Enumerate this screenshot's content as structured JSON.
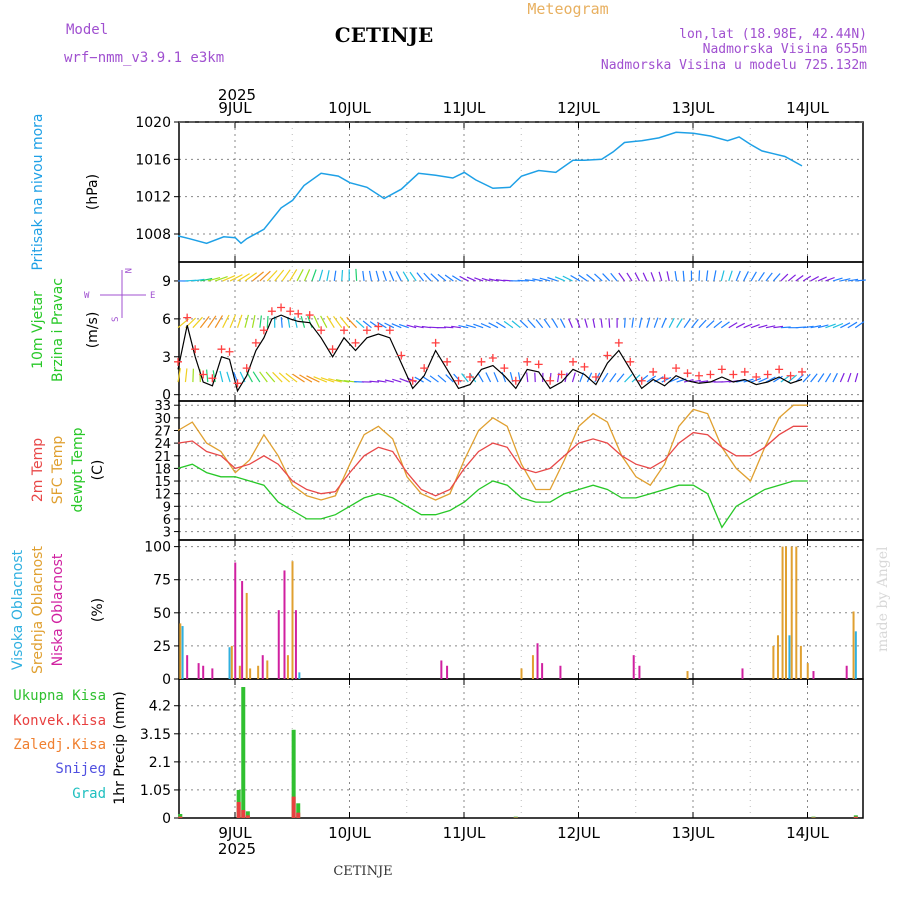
{
  "header": {
    "model_label": "Model",
    "model_name": "wrf−nmm_v3.9.1 e3km",
    "station": "CETINJE",
    "product": "Meteogram",
    "coords": "lon,lat (18.98E, 42.44N)",
    "altitude": "Nadmorska Visina 655m",
    "model_altitude": "Nadmorska Visina u modelu 725.132m"
  },
  "footer": {
    "station": "CETINJE",
    "credit": "made by Angel"
  },
  "axis": {
    "year": "2025",
    "days": [
      "9JUL",
      "10JUL",
      "11JUL",
      "12JUL",
      "13JUL",
      "14JUL"
    ]
  },
  "colors": {
    "pressure": "#1ea0e6",
    "wind": "#000000",
    "wind_markers": "#ff4040",
    "t2m": "#e84848",
    "sfc": "#e0a030",
    "dew": "#28c828",
    "high_cloud": "#30b0e0",
    "mid_cloud": "#e0a030",
    "low_cloud": "#d020a0",
    "rain_total": "#30c030",
    "rain_conv": "#e84040",
    "freezing": "#f08030",
    "snow": "#5050e0",
    "hail": "#20c0c0",
    "purple": "#a050d0",
    "product": "#e8b060"
  },
  "chart_data": [
    {
      "type": "line",
      "title": "Pritisak na nivou mora",
      "ylabel": "(hPa)",
      "ylim": [
        1005,
        1020
      ],
      "yticks": [
        1008,
        1012,
        1016,
        1020
      ],
      "x_days": [
        0,
        0.1,
        0.25,
        0.4,
        0.5,
        0.55,
        0.6,
        0.75,
        0.9,
        1.0,
        1.1,
        1.25,
        1.4,
        1.5,
        1.65,
        1.8,
        1.95,
        2.1,
        2.25,
        2.4,
        2.5,
        2.6,
        2.75,
        2.9,
        3.0,
        3.15,
        3.3,
        3.45,
        3.55,
        3.7,
        3.8,
        3.9,
        4.05,
        4.2,
        4.35,
        4.5,
        4.65,
        4.8,
        4.9,
        5.0,
        5.1,
        5.2,
        5.3,
        5.45
      ],
      "values": [
        1007.8,
        1007.5,
        1007.0,
        1007.7,
        1007.6,
        1007.0,
        1007.5,
        1008.5,
        1010.8,
        1011.6,
        1013.2,
        1014.5,
        1014.2,
        1013.5,
        1013.0,
        1011.8,
        1012.8,
        1014.5,
        1014.3,
        1014.0,
        1014.6,
        1013.8,
        1012.9,
        1013.0,
        1014.2,
        1014.8,
        1014.6,
        1015.9,
        1015.9,
        1016.0,
        1016.8,
        1017.8,
        1018.0,
        1018.3,
        1018.9,
        1018.8,
        1018.5,
        1018.0,
        1018.4,
        1017.6,
        1016.9,
        1016.6,
        1016.3,
        1015.3
      ]
    },
    {
      "type": "line",
      "title": "10m Vjetar Brzina i Pravac",
      "ylabel": "(m/s)",
      "compass": [
        "N",
        "S",
        "W",
        "E"
      ],
      "ylim": [
        -0.5,
        10.5
      ],
      "yticks": [
        0,
        3,
        6,
        9
      ],
      "x_days": [
        0,
        0.08,
        0.15,
        0.22,
        0.3,
        0.38,
        0.45,
        0.52,
        0.6,
        0.68,
        0.75,
        0.82,
        0.9,
        0.98,
        1.05,
        1.15,
        1.25,
        1.35,
        1.45,
        1.55,
        1.65,
        1.75,
        1.85,
        1.95,
        2.05,
        2.15,
        2.25,
        2.35,
        2.45,
        2.55,
        2.65,
        2.75,
        2.85,
        2.95,
        3.05,
        3.15,
        3.25,
        3.35,
        3.45,
        3.55,
        3.65,
        3.75,
        3.85,
        3.95,
        4.05,
        4.15,
        4.25,
        4.35,
        4.45,
        4.55,
        4.65,
        4.75,
        4.85,
        4.95,
        5.05,
        5.15,
        5.25,
        5.35,
        5.45
      ],
      "values": [
        2.0,
        5.5,
        3.0,
        1.0,
        0.7,
        3.0,
        2.8,
        0.3,
        1.5,
        3.5,
        4.5,
        6.0,
        6.3,
        6.0,
        5.8,
        5.7,
        4.5,
        3.0,
        4.5,
        3.5,
        4.5,
        4.8,
        4.5,
        2.5,
        0.5,
        1.5,
        3.5,
        2.0,
        0.5,
        0.8,
        2.0,
        2.3,
        1.5,
        0.5,
        2.0,
        1.8,
        0.5,
        1.0,
        2.0,
        1.6,
        0.8,
        2.5,
        3.5,
        2.0,
        0.5,
        1.2,
        0.7,
        1.5,
        1.1,
        0.9,
        1.0,
        1.4,
        1.0,
        1.2,
        0.8,
        1.0,
        1.4,
        0.9,
        1.2
      ]
    },
    {
      "type": "line",
      "title": "2m Temp / SFC Temp / dewpt Temp",
      "ylabel": "(C)",
      "series_names": [
        "2m Temp",
        "SFC Temp",
        "dewpt Temp"
      ],
      "ylim": [
        1,
        34
      ],
      "yticks": [
        3,
        6,
        9,
        12,
        15,
        18,
        21,
        24,
        27,
        30,
        33
      ],
      "x_days": [
        0,
        0.125,
        0.25,
        0.375,
        0.5,
        0.625,
        0.75,
        0.875,
        1.0,
        1.125,
        1.25,
        1.375,
        1.5,
        1.625,
        1.75,
        1.875,
        2.0,
        2.125,
        2.25,
        2.375,
        2.5,
        2.625,
        2.75,
        2.875,
        3.0,
        3.125,
        3.25,
        3.375,
        3.5,
        3.625,
        3.75,
        3.875,
        4.0,
        4.125,
        4.25,
        4.375,
        4.5,
        4.625,
        4.75,
        4.875,
        5.0,
        5.125,
        5.25,
        5.375,
        5.5
      ],
      "series": [
        {
          "name": "2m Temp",
          "values": [
            24,
            24.5,
            22,
            21,
            18,
            19,
            21,
            19,
            15,
            13,
            12,
            12.5,
            17,
            21,
            23,
            22,
            17,
            13,
            11.5,
            13,
            18,
            22,
            24,
            23,
            18,
            17,
            18,
            21,
            24,
            25,
            24,
            21,
            19,
            18,
            20,
            24,
            26.5,
            26,
            23,
            21,
            21,
            23,
            26,
            28,
            28
          ]
        },
        {
          "name": "SFC Temp",
          "values": [
            27,
            29,
            24,
            22,
            17,
            20,
            26,
            21,
            14,
            11.5,
            10.5,
            11.5,
            19,
            26,
            28,
            25,
            16,
            12,
            10.5,
            12,
            20,
            27,
            30,
            28,
            19,
            13,
            13,
            20,
            28,
            31,
            29,
            21,
            16,
            14,
            19,
            28,
            32,
            31,
            23,
            18,
            15,
            23,
            30,
            33,
            33
          ]
        },
        {
          "name": "dewpt Temp",
          "values": [
            18,
            19,
            17,
            16,
            16,
            15,
            14,
            10,
            8,
            6,
            6,
            7,
            9,
            11,
            12,
            11,
            9,
            7,
            7,
            8,
            10,
            13,
            15,
            14,
            11,
            10,
            10,
            12,
            13,
            14,
            13,
            11,
            11,
            12,
            13,
            14,
            14,
            12,
            4,
            9,
            11,
            13,
            14,
            15,
            15
          ]
        }
      ]
    },
    {
      "type": "bar",
      "title": "Visoka / Srednja / Niska Oblacnost",
      "ylabel": "(%)",
      "series_names": [
        "Visoka Oblacnost",
        "Srednja Oblacnost",
        "Niska Oblacnost"
      ],
      "ylim": [
        0,
        105
      ],
      "yticks": [
        0,
        25,
        50,
        75,
        100
      ],
      "bars": [
        {
          "x": 0.02,
          "s": "mid",
          "v": 42
        },
        {
          "x": 0.04,
          "s": "high",
          "v": 40
        },
        {
          "x": 0.08,
          "s": "low",
          "v": 18
        },
        {
          "x": 0.18,
          "s": "low",
          "v": 12
        },
        {
          "x": 0.22,
          "s": "low",
          "v": 10
        },
        {
          "x": 0.3,
          "s": "low",
          "v": 8
        },
        {
          "x": 0.45,
          "s": "high",
          "v": 24
        },
        {
          "x": 0.47,
          "s": "mid",
          "v": 25
        },
        {
          "x": 0.5,
          "s": "low",
          "v": 88
        },
        {
          "x": 0.54,
          "s": "mid",
          "v": 10
        },
        {
          "x": 0.56,
          "s": "low",
          "v": 74
        },
        {
          "x": 0.6,
          "s": "mid",
          "v": 65
        },
        {
          "x": 0.63,
          "s": "mid",
          "v": 8
        },
        {
          "x": 0.7,
          "s": "mid",
          "v": 10
        },
        {
          "x": 0.74,
          "s": "low",
          "v": 18
        },
        {
          "x": 0.78,
          "s": "mid",
          "v": 14
        },
        {
          "x": 0.88,
          "s": "low",
          "v": 52
        },
        {
          "x": 0.93,
          "s": "low",
          "v": 82
        },
        {
          "x": 0.96,
          "s": "mid",
          "v": 18
        },
        {
          "x": 1.0,
          "s": "mid",
          "v": 89
        },
        {
          "x": 1.03,
          "s": "low",
          "v": 52
        },
        {
          "x": 1.06,
          "s": "high",
          "v": 5
        },
        {
          "x": 2.3,
          "s": "low",
          "v": 14
        },
        {
          "x": 2.35,
          "s": "low",
          "v": 10
        },
        {
          "x": 3.0,
          "s": "mid",
          "v": 8
        },
        {
          "x": 3.1,
          "s": "mid",
          "v": 18
        },
        {
          "x": 3.14,
          "s": "low",
          "v": 27
        },
        {
          "x": 3.18,
          "s": "low",
          "v": 12
        },
        {
          "x": 3.34,
          "s": "low",
          "v": 10
        },
        {
          "x": 3.98,
          "s": "low",
          "v": 18
        },
        {
          "x": 4.03,
          "s": "low",
          "v": 10
        },
        {
          "x": 4.45,
          "s": "mid",
          "v": 6
        },
        {
          "x": 4.93,
          "s": "low",
          "v": 8
        },
        {
          "x": 5.2,
          "s": "mid",
          "v": 25
        },
        {
          "x": 5.24,
          "s": "mid",
          "v": 33
        },
        {
          "x": 5.28,
          "s": "mid",
          "v": 100
        },
        {
          "x": 5.31,
          "s": "mid",
          "v": 100
        },
        {
          "x": 5.34,
          "s": "high",
          "v": 33
        },
        {
          "x": 5.36,
          "s": "mid",
          "v": 100
        },
        {
          "x": 5.4,
          "s": "mid",
          "v": 100
        },
        {
          "x": 5.44,
          "s": "mid",
          "v": 25
        },
        {
          "x": 5.5,
          "s": "mid",
          "v": 12
        },
        {
          "x": 5.55,
          "s": "low",
          "v": 6
        },
        {
          "x": 5.84,
          "s": "low",
          "v": 10
        },
        {
          "x": 5.9,
          "s": "mid",
          "v": 51
        },
        {
          "x": 5.92,
          "s": "high",
          "v": 36
        }
      ]
    },
    {
      "type": "bar",
      "title": "1hr Precip (mm)",
      "ylabel": "1hr Precip (mm)",
      "legend": [
        "Ukupna Kisa",
        "Konvek.Kisa",
        "Zaledj.Kisa",
        "Snijeg",
        "Grad"
      ],
      "ylim": [
        0,
        5.2
      ],
      "yticks": [
        "0",
        "1.05",
        "2.1",
        "3.15",
        "4.2"
      ],
      "ytick_values": [
        0,
        1.05,
        2.1,
        3.15,
        4.2
      ],
      "bars": [
        {
          "x": 0.02,
          "total": 0.15,
          "conv": 0.05
        },
        {
          "x": 0.53,
          "total": 1.05,
          "conv": 0.6
        },
        {
          "x": 0.57,
          "total": 4.9,
          "conv": 0.3
        },
        {
          "x": 0.61,
          "total": 0.25,
          "conv": 0.1
        },
        {
          "x": 1.01,
          "total": 3.3,
          "conv": 0.8
        },
        {
          "x": 1.05,
          "total": 0.55,
          "conv": 0.2
        },
        {
          "x": 2.95,
          "total": 0.05,
          "conv": 0.02
        },
        {
          "x": 5.55,
          "total": 0.05,
          "conv": 0.02
        },
        {
          "x": 5.92,
          "total": 0.1,
          "conv": 0.05
        }
      ]
    }
  ]
}
